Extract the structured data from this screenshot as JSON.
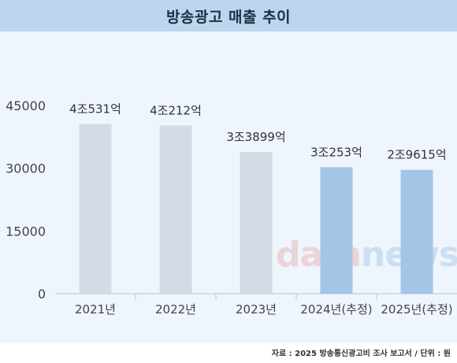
{
  "title": "방송광고 매출 추이",
  "source": "자료 : 2025 방송통신광고비 조사 보고서 / 단위 : 원",
  "watermark": {
    "part1": "data",
    "part2": "news"
  },
  "colors": {
    "header_bg": "#bcd6ee",
    "plot_bg": "#eef5fc",
    "bar_actual": "#d5dbe4",
    "bar_estimate": "#a3c5e6"
  },
  "chart_data": {
    "type": "bar",
    "categories": [
      "2021년",
      "2022년",
      "2023년",
      "2024년(추정)",
      "2025년(추정)"
    ],
    "values": [
      40531,
      40212,
      33899,
      30253,
      29615
    ],
    "data_labels": [
      "4조531억",
      "4조212억",
      "3조3899억",
      "3조253억",
      "2조9615억"
    ],
    "estimated": [
      false,
      false,
      false,
      true,
      true
    ],
    "yticks": [
      0,
      15000,
      30000,
      45000
    ],
    "ylim": [
      0,
      45000
    ],
    "grid": false
  }
}
